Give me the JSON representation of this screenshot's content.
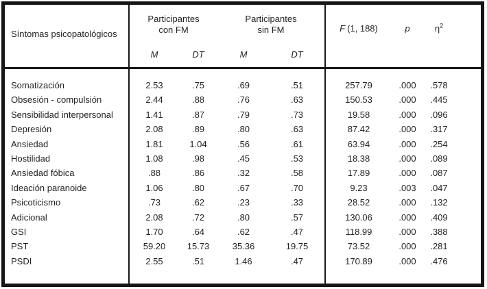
{
  "table": {
    "header": {
      "symptoms_label": "Síntomas psicopatológicos",
      "group_con_fm_line1": "Participantes",
      "group_con_fm_line2": "con FM",
      "group_sin_fm_line1": "Participantes",
      "group_sin_fm_line2": "sin FM",
      "mean_label": "M",
      "sd_label": "DT",
      "f_label": "F",
      "f_df": "(1, 188)",
      "p_label": "p",
      "eta_label": "η",
      "eta_exponent": "2"
    },
    "rows": [
      {
        "label": "Somatización",
        "m_fm": "2.53",
        "dt_fm": ".75",
        "m_sin": ".69",
        "dt_sin": ".51",
        "f": "257.79",
        "p": ".000",
        "eta2": ".578"
      },
      {
        "label": "Obsesión - compulsión",
        "m_fm": "2.44",
        "dt_fm": ".88",
        "m_sin": ".76",
        "dt_sin": ".63",
        "f": "150.53",
        "p": ".000",
        "eta2": ".445"
      },
      {
        "label": "Sensibilidad interpersonal",
        "m_fm": "1.41",
        "dt_fm": ".87",
        "m_sin": ".79",
        "dt_sin": ".73",
        "f": "19.58",
        "p": ".000",
        "eta2": ".096"
      },
      {
        "label": "Depresión",
        "m_fm": "2.08",
        "dt_fm": ".89",
        "m_sin": ".80",
        "dt_sin": ".63",
        "f": "87.42",
        "p": ".000",
        "eta2": ".317"
      },
      {
        "label": "Ansiedad",
        "m_fm": "1.81",
        "dt_fm": "1.04",
        "m_sin": ".56",
        "dt_sin": ".61",
        "f": "63.94",
        "p": ".000",
        "eta2": ".254"
      },
      {
        "label": "Hostilidad",
        "m_fm": "1.08",
        "dt_fm": ".98",
        "m_sin": ".45",
        "dt_sin": ".53",
        "f": "18.38",
        "p": ".000",
        "eta2": ".089"
      },
      {
        "label": "Ansiedad fóbica",
        "m_fm": ".88",
        "dt_fm": ".86",
        "m_sin": ".32",
        "dt_sin": ".58",
        "f": "17.89",
        "p": ".000",
        "eta2": ".087"
      },
      {
        "label": "Ideación paranoide",
        "m_fm": "1.06",
        "dt_fm": ".80",
        "m_sin": ".67",
        "dt_sin": ".70",
        "f": "9.23",
        "p": ".003",
        "eta2": ".047"
      },
      {
        "label": "Psicoticismo",
        "m_fm": ".73",
        "dt_fm": ".62",
        "m_sin": ".23",
        "dt_sin": ".33",
        "f": "28.52",
        "p": ".000",
        "eta2": ".132"
      },
      {
        "label": "Adicional",
        "m_fm": "2.08",
        "dt_fm": ".72",
        "m_sin": ".80",
        "dt_sin": ".57",
        "f": "130.06",
        "p": ".000",
        "eta2": ".409"
      },
      {
        "label": "GSI",
        "m_fm": "1.70",
        "dt_fm": ".64",
        "m_sin": ".62",
        "dt_sin": ".47",
        "f": "118.99",
        "p": ".000",
        "eta2": ".388"
      },
      {
        "label": "PST",
        "m_fm": "59.20",
        "dt_fm": "15.73",
        "m_sin": "35.36",
        "dt_sin": "19.75",
        "f": "73.52",
        "p": ".000",
        "eta2": ".281"
      },
      {
        "label": "PSDI",
        "m_fm": "2.55",
        "dt_fm": ".51",
        "m_sin": "1.46",
        "dt_sin": ".47",
        "f": "170.89",
        "p": ".000",
        "eta2": ".476"
      }
    ]
  },
  "colors": {
    "background": "#ffffff",
    "text": "#232326",
    "border": "#161616"
  }
}
